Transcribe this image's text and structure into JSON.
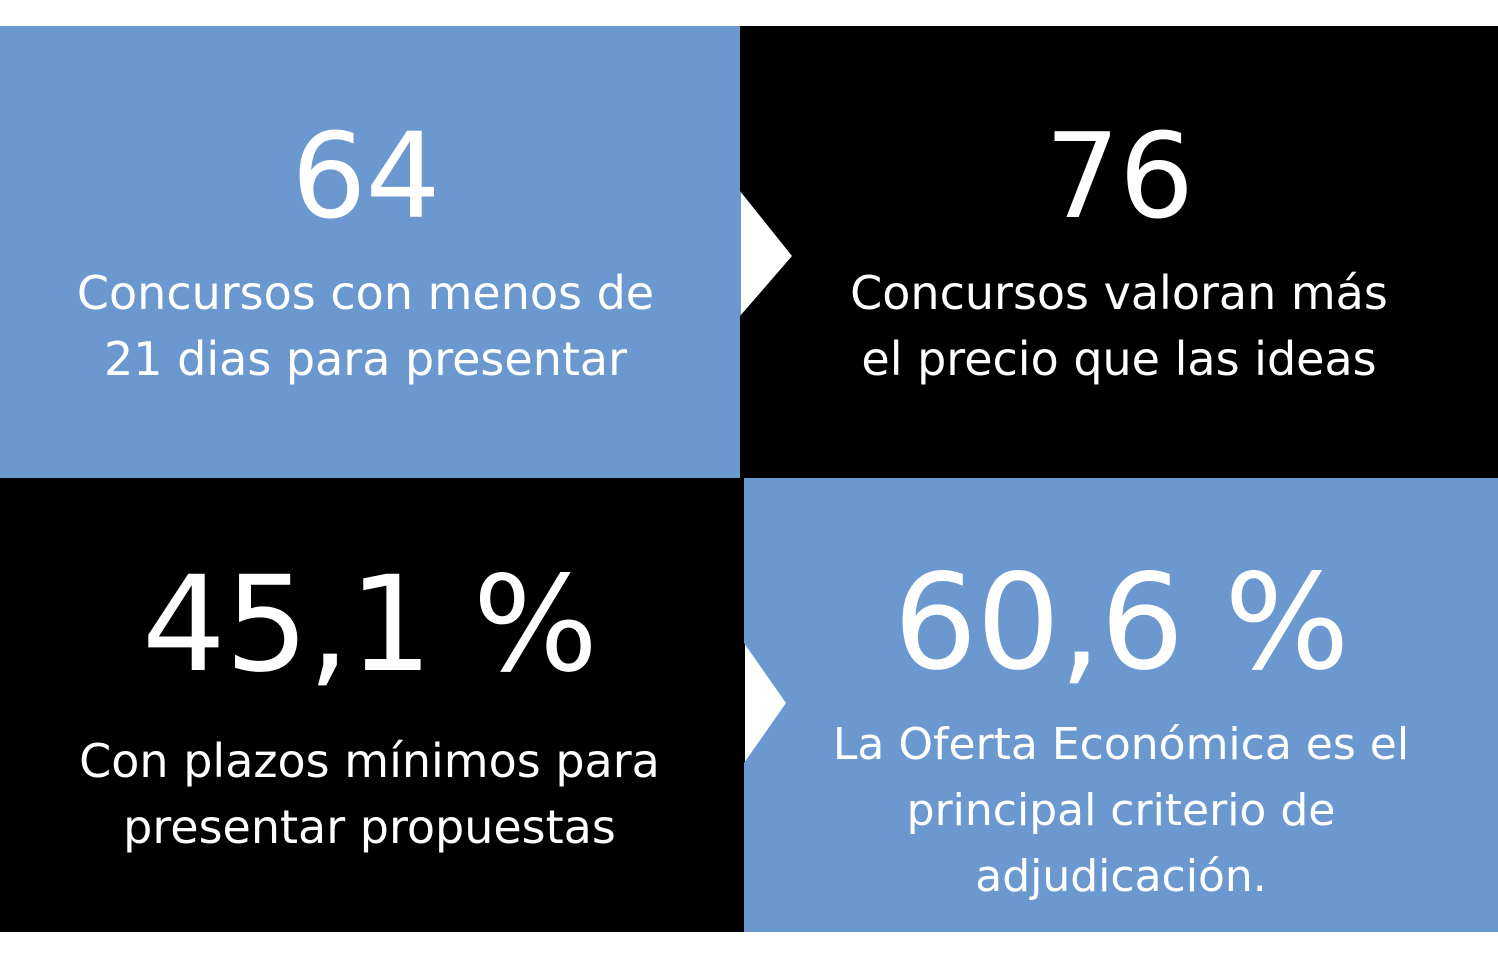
{
  "tiles": {
    "top_left": {
      "value": "64",
      "lines": [
        "Concursos con menos de",
        "21 dias para presentar"
      ]
    },
    "top_right": {
      "value": "76",
      "lines": [
        "Concursos valoran más",
        "el precio que las ideas"
      ]
    },
    "bottom_left": {
      "value": "45,1 %",
      "lines": [
        "Con plazos mínimos para",
        "presentar propuestas"
      ]
    },
    "bottom_right": {
      "value": "60,6 %",
      "lines": [
        "La Oferta Económica es el",
        "principal criterio de",
        "adjudicación."
      ]
    }
  },
  "colors": {
    "blue": "#6b99cf",
    "black": "#000000",
    "text": "#ffffff"
  }
}
